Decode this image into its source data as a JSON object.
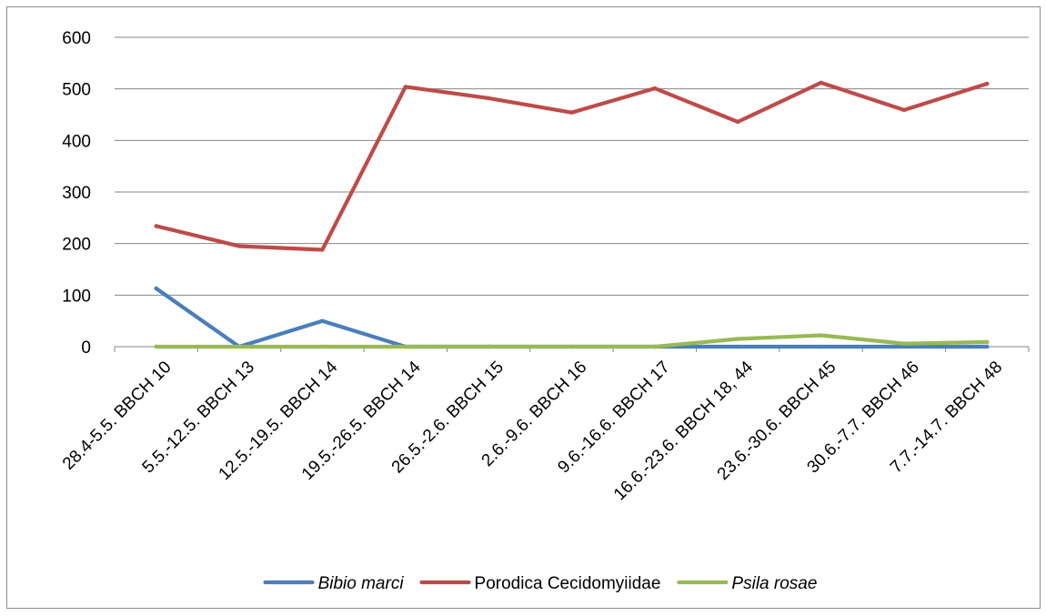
{
  "chart_data": {
    "type": "line",
    "categories": [
      "28.4-5.5. BBCH 10",
      "5.5.-12.5. BBCH 13",
      "12.5.-19.5. BBCH 14",
      "19.5.-26.5. BBCH 14",
      "26.5.-2.6. BBCH 15",
      "2.6.-9.6. BBCH 16",
      "9.6.-16.6. BBCH 17",
      "16.6.-23.6. BBCH 18, 44",
      "23.6.-30.6. BBCH 45",
      "30.6.-7.7. BBCH 46",
      "7.7.-14.7. BBCH 48"
    ],
    "series": [
      {
        "name": "Bibio marci",
        "italic": true,
        "color": "#4a7ebb",
        "values": [
          113,
          0,
          50,
          0,
          0,
          0,
          0,
          0,
          0,
          0,
          0
        ]
      },
      {
        "name": "Porodica Cecidomyiidae",
        "italic": false,
        "color": "#be4b48",
        "values": [
          234,
          195,
          188,
          504,
          482,
          454,
          501,
          436,
          512,
          459,
          510
        ]
      },
      {
        "name": "Psila rosae",
        "italic": true,
        "color": "#98b954",
        "values": [
          0,
          0,
          0,
          0,
          0,
          0,
          0,
          15,
          22,
          6,
          9
        ]
      }
    ],
    "yticks": [
      0,
      100,
      200,
      300,
      400,
      500,
      600
    ],
    "ylim": [
      0,
      600
    ],
    "grid": true,
    "legend": "bottom",
    "title": "",
    "xlabel": "",
    "ylabel": ""
  }
}
